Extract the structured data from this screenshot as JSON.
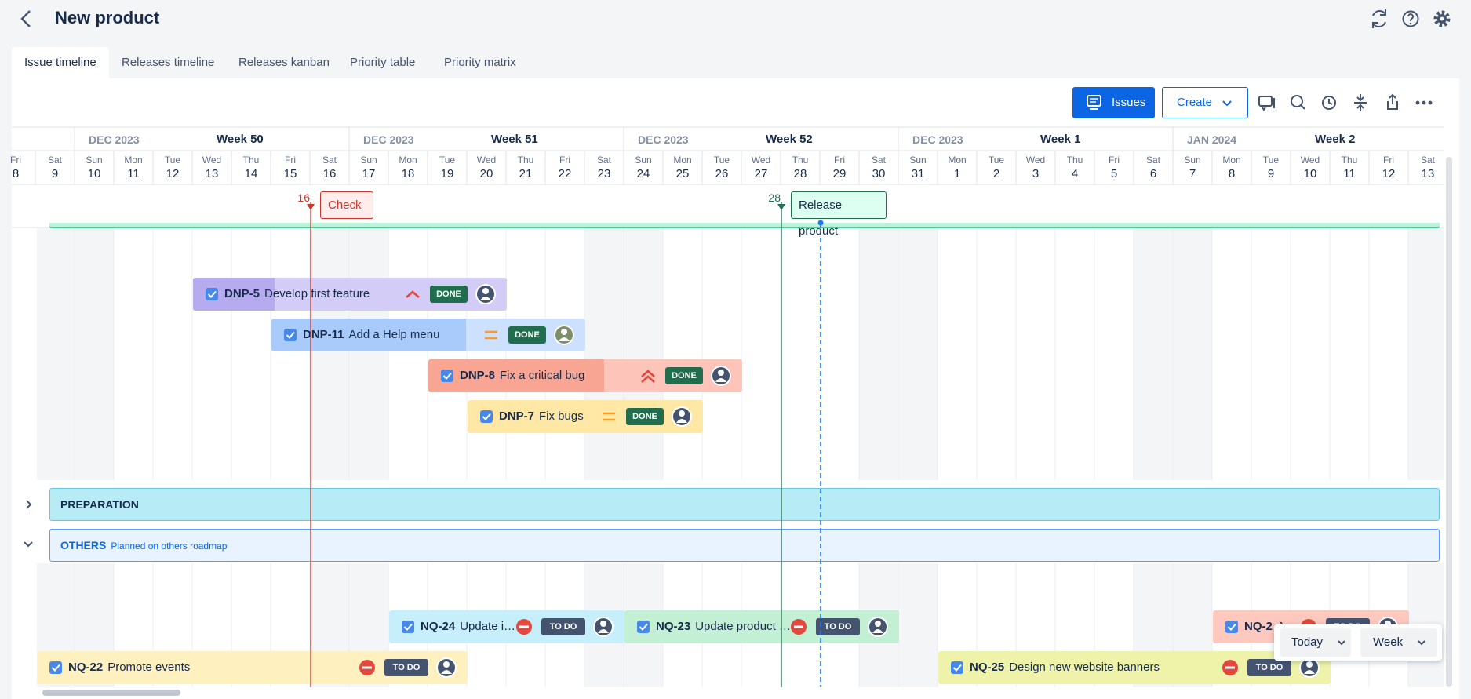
{
  "header": {
    "title": "New product"
  },
  "tabs": [
    "Issue timeline",
    "Releases timeline",
    "Releases kanban",
    "Priority table",
    "Priority matrix"
  ],
  "toolbar": {
    "issues": "Issues",
    "create": "Create"
  },
  "timeline": {
    "weeks": [
      {
        "month": "DEC 2023",
        "label": "Week 50"
      },
      {
        "month": "DEC 2023",
        "label": "Week 51"
      },
      {
        "month": "DEC 2023",
        "label": "Week 52"
      },
      {
        "month": "DEC 2023",
        "label": "Week 1"
      },
      {
        "month": "JAN 2024",
        "label": "Week 2"
      }
    ],
    "days": [
      {
        "weekday": "Fri",
        "day": 8
      },
      {
        "weekday": "Sat",
        "day": 9
      },
      {
        "weekday": "Sun",
        "day": 10
      },
      {
        "weekday": "Mon",
        "day": 11
      },
      {
        "weekday": "Tue",
        "day": 12
      },
      {
        "weekday": "Wed",
        "day": 13
      },
      {
        "weekday": "Thu",
        "day": 14
      },
      {
        "weekday": "Fri",
        "day": 15
      },
      {
        "weekday": "Sat",
        "day": 16
      },
      {
        "weekday": "Sun",
        "day": 17
      },
      {
        "weekday": "Mon",
        "day": 18
      },
      {
        "weekday": "Tue",
        "day": 19
      },
      {
        "weekday": "Wed",
        "day": 20
      },
      {
        "weekday": "Thu",
        "day": 21
      },
      {
        "weekday": "Fri",
        "day": 22
      },
      {
        "weekday": "Sat",
        "day": 23
      },
      {
        "weekday": "Sun",
        "day": 24
      },
      {
        "weekday": "Mon",
        "day": 25
      },
      {
        "weekday": "Tue",
        "day": 26
      },
      {
        "weekday": "Wed",
        "day": 27
      },
      {
        "weekday": "Thu",
        "day": 28
      },
      {
        "weekday": "Fri",
        "day": 29
      },
      {
        "weekday": "Sat",
        "day": 30
      },
      {
        "weekday": "Sun",
        "day": 31
      },
      {
        "weekday": "Mon",
        "day": 1
      },
      {
        "weekday": "Tue",
        "day": 2
      },
      {
        "weekday": "Wed",
        "day": 3
      },
      {
        "weekday": "Thu",
        "day": 4
      },
      {
        "weekday": "Fri",
        "day": 5
      },
      {
        "weekday": "Sat",
        "day": 6
      },
      {
        "weekday": "Sun",
        "day": 7
      },
      {
        "weekday": "Mon",
        "day": 8
      },
      {
        "weekday": "Tue",
        "day": 9
      },
      {
        "weekday": "Wed",
        "day": 10
      },
      {
        "weekday": "Thu",
        "day": 11
      },
      {
        "weekday": "Fri",
        "day": 12
      },
      {
        "weekday": "Sat",
        "day": 13
      }
    ],
    "markers": [
      {
        "day": 16,
        "label": "Check"
      },
      {
        "day": 28,
        "label": "Release product"
      }
    ],
    "issues": [
      {
        "key": "DNP-5",
        "summary": "Develop first feature",
        "status": "DONE"
      },
      {
        "key": "DNP-11",
        "summary": "Add a Help menu",
        "status": "DONE"
      },
      {
        "key": "DNP-8",
        "summary": "Fix a critical bug",
        "status": "DONE"
      },
      {
        "key": "DNP-7",
        "summary": "Fix bugs",
        "status": "DONE"
      },
      {
        "key": "NQ-24",
        "summary": "Update i…",
        "status": "TO DO"
      },
      {
        "key": "NQ-23",
        "summary": "Update product …",
        "status": "TO DO"
      },
      {
        "key": "NQ-2",
        "summary": "A…",
        "status": "TO DO"
      },
      {
        "key": "NQ-22",
        "summary": "Promote events",
        "status": "TO DO"
      },
      {
        "key": "NQ-25",
        "summary": "Design new website banners",
        "status": "TO DO"
      }
    ],
    "groups": [
      {
        "name": "PREPARATION"
      },
      {
        "name": "OTHERS",
        "note": "Planned on others roadmap"
      }
    ]
  },
  "controls": {
    "today": "Today",
    "scale": "Week"
  }
}
